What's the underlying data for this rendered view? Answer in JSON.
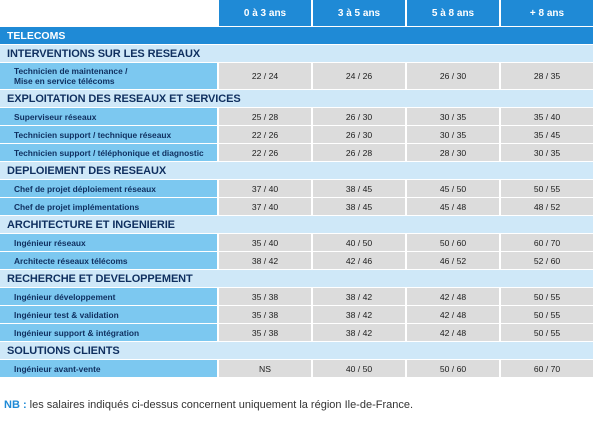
{
  "columns": [
    "0 à 3 ans",
    "3 à 5 ans",
    "5 à 8 ans",
    "+ 8 ans"
  ],
  "category": "TELECOMS",
  "sections": [
    {
      "title": "INTERVENTIONS SUR LES RESEAUX",
      "rows": [
        {
          "label": "Technicien de maintenance /\nMise en service télécoms",
          "values": [
            "22 / 24",
            "24 / 26",
            "26 / 30",
            "28 / 35"
          ],
          "tall": true
        }
      ]
    },
    {
      "title": "EXPLOITATION DES RESEAUX ET SERVICES",
      "rows": [
        {
          "label": "Superviseur réseaux",
          "values": [
            "25 / 28",
            "26 / 30",
            "30 / 35",
            "35 / 40"
          ]
        },
        {
          "label": "Technicien support / technique réseaux",
          "values": [
            "22 / 26",
            "26 / 30",
            "30 / 35",
            "35 / 45"
          ]
        },
        {
          "label": "Technicien support / téléphonique et diagnostic",
          "values": [
            "22 / 26",
            "26 / 28",
            "28 / 30",
            "30 / 35"
          ]
        }
      ]
    },
    {
      "title": "DEPLOIEMENT DES RESEAUX",
      "rows": [
        {
          "label": "Chef de projet déploiement réseaux",
          "values": [
            "37 / 40",
            "38 / 45",
            "45 / 50",
            "50 / 55"
          ]
        },
        {
          "label": "Chef de projet implémentations",
          "values": [
            "37 / 40",
            "38 / 45",
            "45 / 48",
            "48 / 52"
          ]
        }
      ]
    },
    {
      "title": "ARCHITECTURE ET INGENIERIE",
      "rows": [
        {
          "label": "Ingénieur réseaux",
          "values": [
            "35 / 40",
            "40 / 50",
            "50 / 60",
            "60 / 70"
          ]
        },
        {
          "label": "Architecte réseaux télécoms",
          "values": [
            "38 / 42",
            "42 / 46",
            "46 / 52",
            "52 / 60"
          ]
        }
      ]
    },
    {
      "title": "RECHERCHE ET DEVELOPPEMENT",
      "rows": [
        {
          "label": "Ingénieur développement",
          "values": [
            "35 / 38",
            "38 / 42",
            "42 / 48",
            "50 / 55"
          ]
        },
        {
          "label": "Ingénieur test & validation",
          "values": [
            "35 / 38",
            "38 / 42",
            "42 / 48",
            "50 / 55"
          ]
        },
        {
          "label": "Ingénieur support & intégration",
          "values": [
            "35 / 38",
            "38 / 42",
            "42 / 48",
            "50 / 55"
          ]
        }
      ]
    },
    {
      "title": "SOLUTIONS CLIENTS",
      "rows": [
        {
          "label": "Ingénieur avant-vente",
          "values": [
            "NS",
            "40 / 50",
            "50 / 60",
            "60 / 70"
          ]
        }
      ]
    }
  ],
  "note": {
    "prefix": "NB :",
    "text": " les salaires indiqués ci-dessus concernent uniquement la région Ile-de-France."
  }
}
